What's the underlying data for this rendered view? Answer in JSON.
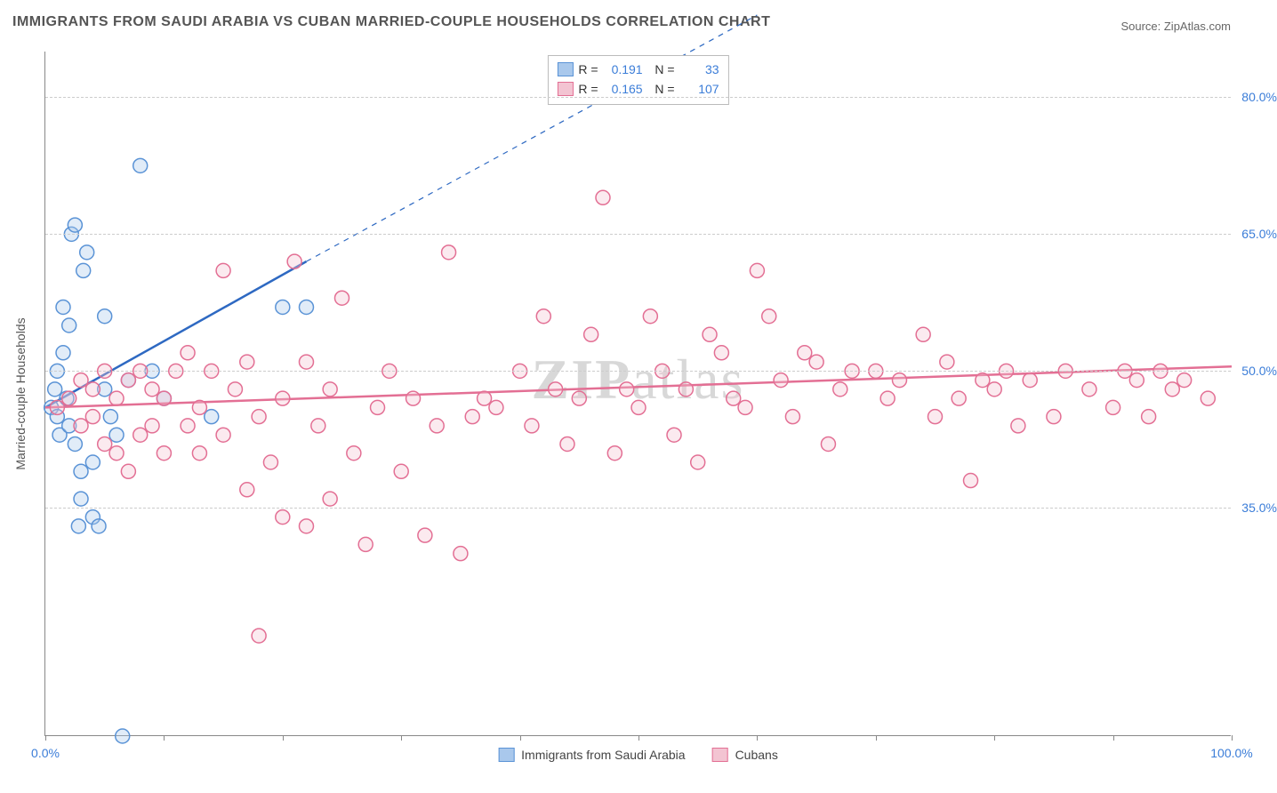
{
  "title": "IMMIGRANTS FROM SAUDI ARABIA VS CUBAN MARRIED-COUPLE HOUSEHOLDS CORRELATION CHART",
  "source_label": "Source: ZipAtlas.com",
  "watermark_zip": "ZIP",
  "watermark_atlas": "atlas",
  "y_axis_label": "Married-couple Households",
  "chart": {
    "type": "scatter",
    "background_color": "#ffffff",
    "grid_color": "#cccccc",
    "axis_color": "#888888",
    "xlim": [
      0,
      100
    ],
    "ylim": [
      10,
      85
    ],
    "x_ticks": [
      0,
      10,
      20,
      30,
      40,
      50,
      60,
      70,
      80,
      90,
      100
    ],
    "x_tick_labels": {
      "0": "0.0%",
      "100": "100.0%"
    },
    "y_ticks": [
      35,
      50,
      65,
      80
    ],
    "y_tick_labels": {
      "35": "35.0%",
      "50": "50.0%",
      "65": "65.0%",
      "80": "80.0%"
    },
    "marker_radius": 8,
    "marker_stroke_width": 1.5,
    "marker_fill_opacity": 0.35,
    "series": [
      {
        "id": "saudi",
        "label": "Immigrants from Saudi Arabia",
        "color_fill": "#a9c8ec",
        "color_stroke": "#5a93d6",
        "R": "0.191",
        "N": "33",
        "trend": {
          "x1": 0,
          "y1": 46,
          "x2": 22,
          "y2": 62,
          "dash_x2": 60,
          "dash_y2": 89,
          "color": "#2e69c2",
          "width": 2.5
        },
        "points": [
          [
            0.5,
            46
          ],
          [
            0.8,
            48
          ],
          [
            1,
            45
          ],
          [
            1,
            50
          ],
          [
            1.2,
            43
          ],
          [
            1.5,
            52
          ],
          [
            1.5,
            57
          ],
          [
            1.8,
            47
          ],
          [
            2,
            44
          ],
          [
            2,
            55
          ],
          [
            2.2,
            65
          ],
          [
            2.5,
            66
          ],
          [
            2.5,
            42
          ],
          [
            2.8,
            33
          ],
          [
            3,
            36
          ],
          [
            3,
            39
          ],
          [
            3.2,
            61
          ],
          [
            3.5,
            63
          ],
          [
            4,
            34
          ],
          [
            4,
            40
          ],
          [
            4.5,
            33
          ],
          [
            5,
            56
          ],
          [
            5,
            48
          ],
          [
            5.5,
            45
          ],
          [
            6,
            43
          ],
          [
            6.5,
            10
          ],
          [
            7,
            49
          ],
          [
            8,
            72.5
          ],
          [
            9,
            50
          ],
          [
            10,
            47
          ],
          [
            14,
            45
          ],
          [
            20,
            57
          ],
          [
            22,
            57
          ]
        ]
      },
      {
        "id": "cubans",
        "label": "Cubans",
        "color_fill": "#f3c4d2",
        "color_stroke": "#e36f94",
        "R": "0.165",
        "N": "107",
        "trend": {
          "x1": 0,
          "y1": 46,
          "x2": 100,
          "y2": 50.5,
          "color": "#e36f94",
          "width": 2.5
        },
        "points": [
          [
            1,
            46
          ],
          [
            2,
            47
          ],
          [
            3,
            44
          ],
          [
            3,
            49
          ],
          [
            4,
            45
          ],
          [
            4,
            48
          ],
          [
            5,
            50
          ],
          [
            5,
            42
          ],
          [
            6,
            41
          ],
          [
            6,
            47
          ],
          [
            7,
            39
          ],
          [
            7,
            49
          ],
          [
            8,
            43
          ],
          [
            8,
            50
          ],
          [
            9,
            48
          ],
          [
            9,
            44
          ],
          [
            10,
            41
          ],
          [
            10,
            47
          ],
          [
            11,
            50
          ],
          [
            12,
            44
          ],
          [
            12,
            52
          ],
          [
            13,
            46
          ],
          [
            13,
            41
          ],
          [
            14,
            50
          ],
          [
            15,
            61
          ],
          [
            15,
            43
          ],
          [
            16,
            48
          ],
          [
            17,
            37
          ],
          [
            17,
            51
          ],
          [
            18,
            21
          ],
          [
            18,
            45
          ],
          [
            19,
            40
          ],
          [
            20,
            34
          ],
          [
            20,
            47
          ],
          [
            21,
            62
          ],
          [
            22,
            33
          ],
          [
            22,
            51
          ],
          [
            23,
            44
          ],
          [
            24,
            36
          ],
          [
            24,
            48
          ],
          [
            25,
            58
          ],
          [
            26,
            41
          ],
          [
            27,
            31
          ],
          [
            28,
            46
          ],
          [
            29,
            50
          ],
          [
            30,
            39
          ],
          [
            31,
            47
          ],
          [
            32,
            32
          ],
          [
            33,
            44
          ],
          [
            34,
            63
          ],
          [
            35,
            30
          ],
          [
            36,
            45
          ],
          [
            37,
            47
          ],
          [
            38,
            46
          ],
          [
            40,
            50
          ],
          [
            41,
            44
          ],
          [
            42,
            56
          ],
          [
            43,
            48
          ],
          [
            44,
            42
          ],
          [
            45,
            47
          ],
          [
            46,
            54
          ],
          [
            47,
            69
          ],
          [
            48,
            41
          ],
          [
            49,
            48
          ],
          [
            50,
            46
          ],
          [
            51,
            56
          ],
          [
            52,
            50
          ],
          [
            53,
            43
          ],
          [
            54,
            48
          ],
          [
            55,
            40
          ],
          [
            56,
            54
          ],
          [
            57,
            52
          ],
          [
            58,
            47
          ],
          [
            59,
            46
          ],
          [
            60,
            61
          ],
          [
            61,
            56
          ],
          [
            62,
            49
          ],
          [
            63,
            45
          ],
          [
            64,
            52
          ],
          [
            65,
            51
          ],
          [
            66,
            42
          ],
          [
            67,
            48
          ],
          [
            68,
            50
          ],
          [
            70,
            50
          ],
          [
            71,
            47
          ],
          [
            72,
            49
          ],
          [
            74,
            54
          ],
          [
            75,
            45
          ],
          [
            76,
            51
          ],
          [
            77,
            47
          ],
          [
            78,
            38
          ],
          [
            79,
            49
          ],
          [
            80,
            48
          ],
          [
            81,
            50
          ],
          [
            82,
            44
          ],
          [
            83,
            49
          ],
          [
            85,
            45
          ],
          [
            86,
            50
          ],
          [
            88,
            48
          ],
          [
            90,
            46
          ],
          [
            91,
            50
          ],
          [
            92,
            49
          ],
          [
            93,
            45
          ],
          [
            94,
            50
          ],
          [
            95,
            48
          ],
          [
            96,
            49
          ],
          [
            98,
            47
          ]
        ]
      }
    ],
    "legend_bottom": [
      {
        "label": "Immigrants from Saudi Arabia",
        "fill": "#a9c8ec",
        "stroke": "#5a93d6"
      },
      {
        "label": "Cubans",
        "fill": "#f3c4d2",
        "stroke": "#e36f94"
      }
    ]
  }
}
